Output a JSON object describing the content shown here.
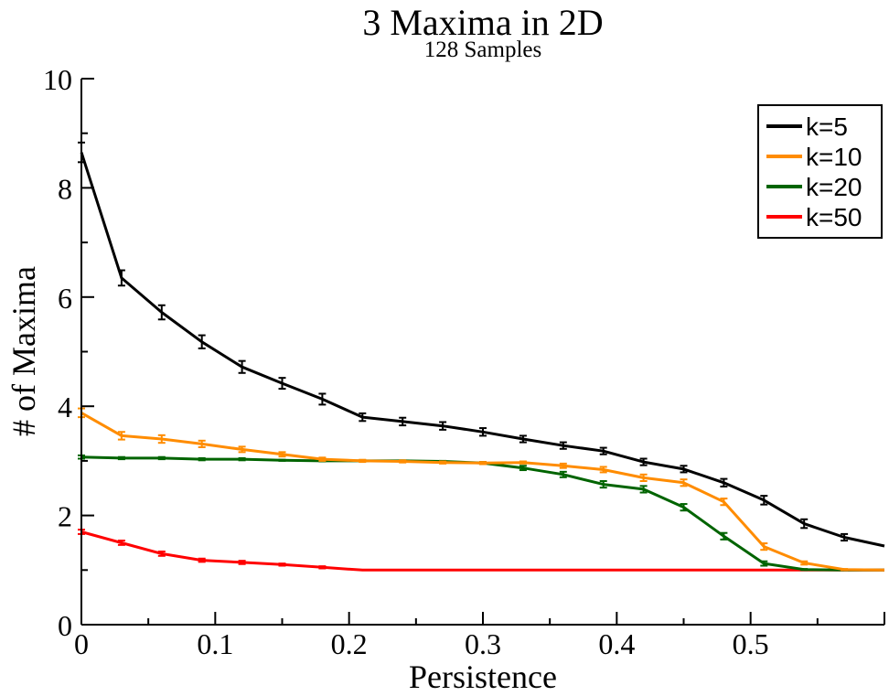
{
  "chart_data": {
    "type": "line",
    "title": "3 Maxima in 2D",
    "subtitle": "128 Samples",
    "xlabel": "Persistence",
    "ylabel": "# of Maxima",
    "xlim": [
      0,
      0.6
    ],
    "ylim": [
      0,
      10
    ],
    "x_ticks": [
      "0",
      "0.1",
      "0.2",
      "0.3",
      "0.4",
      "0.5"
    ],
    "y_ticks": [
      "0",
      "2",
      "4",
      "6",
      "8",
      "10"
    ],
    "legend_position": "top-right",
    "grid": false,
    "x": [
      0,
      0.03,
      0.06,
      0.09,
      0.12,
      0.15,
      0.18,
      0.21,
      0.24,
      0.27,
      0.3,
      0.33,
      0.36,
      0.39,
      0.42,
      0.45,
      0.48,
      0.51,
      0.54,
      0.57,
      0.6
    ],
    "series": [
      {
        "name": "k=5",
        "color": "#000000",
        "values": [
          8.65,
          6.35,
          5.72,
          5.18,
          4.72,
          4.42,
          4.13,
          3.8,
          3.72,
          3.64,
          3.53,
          3.4,
          3.28,
          3.18,
          2.98,
          2.85,
          2.6,
          2.28,
          1.85,
          1.6,
          1.44
        ],
        "errors": [
          0.18,
          0.14,
          0.13,
          0.12,
          0.11,
          0.1,
          0.1,
          0.07,
          0.07,
          0.07,
          0.07,
          0.06,
          0.06,
          0.06,
          0.06,
          0.06,
          0.07,
          0.08,
          0.08,
          0.06,
          0
        ]
      },
      {
        "name": "k=10",
        "color": "#ff8c00",
        "values": [
          3.88,
          3.46,
          3.4,
          3.31,
          3.21,
          3.12,
          3.03,
          3.0,
          2.99,
          2.97,
          2.96,
          2.97,
          2.91,
          2.84,
          2.69,
          2.6,
          2.25,
          1.43,
          1.13,
          1.01,
          1.0
        ],
        "errors": [
          0.08,
          0.07,
          0.07,
          0.06,
          0.05,
          0.04,
          0.03,
          0.02,
          0.02,
          0.02,
          0.02,
          0.02,
          0.04,
          0.05,
          0.06,
          0.06,
          0.06,
          0.06,
          0.03,
          0.01,
          0
        ]
      },
      {
        "name": "k=20",
        "color": "#006400",
        "values": [
          3.07,
          3.05,
          3.05,
          3.03,
          3.03,
          3.01,
          3.0,
          3.0,
          3.0,
          2.99,
          2.96,
          2.87,
          2.75,
          2.57,
          2.48,
          2.15,
          1.62,
          1.12,
          1.01,
          1.0,
          1.0
        ],
        "errors": [
          0.03,
          0.02,
          0.02,
          0.02,
          0.02,
          0.01,
          0.01,
          0.01,
          0.01,
          0.01,
          0.02,
          0.04,
          0.05,
          0.06,
          0.06,
          0.06,
          0.06,
          0.04,
          0.01,
          0,
          0
        ]
      },
      {
        "name": "k=50",
        "color": "#ff0000",
        "values": [
          1.7,
          1.5,
          1.3,
          1.18,
          1.14,
          1.1,
          1.05,
          1.0,
          1.0,
          1.0,
          1.0,
          1.0,
          1.0,
          1.0,
          1.0,
          1.0,
          1.0,
          1.0,
          1.0,
          1.0,
          1.0
        ],
        "errors": [
          0.04,
          0.04,
          0.04,
          0.03,
          0.03,
          0.02,
          0.02,
          0,
          0,
          0,
          0,
          0,
          0,
          0,
          0,
          0,
          0,
          0,
          0,
          0,
          0
        ]
      }
    ]
  }
}
